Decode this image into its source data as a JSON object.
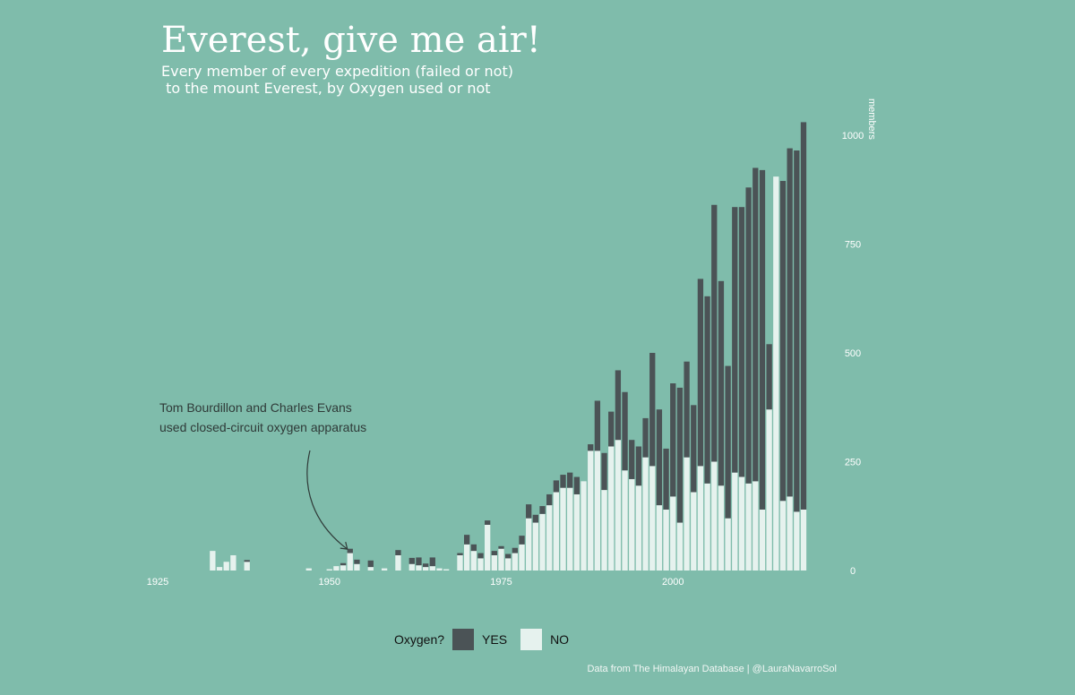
{
  "title": "Everest, give me air!",
  "subtitle": "Every member of every expedition (failed or not)\n to the mount Everest, by Oxygen used or not",
  "caption": "Data from The Himalayan Database | @LauraNavarroSol",
  "annotation": {
    "line1": "Tom Bourdillon and Charles Evans",
    "line2": "used closed-circuit oxygen apparatus"
  },
  "legend": {
    "title": "Oxygen?",
    "yes_label": "YES",
    "no_label": "NO"
  },
  "colors": {
    "background": "#7fbcab",
    "yes": "#4b5356",
    "no": "#e6f2ee",
    "text": "#ffffff"
  },
  "chart_data": {
    "type": "bar",
    "stacked": true,
    "ylabel": "members",
    "xlim": [
      1925,
      2019
    ],
    "ylim": [
      0,
      1050
    ],
    "x_ticks": [
      "1925",
      "1950",
      "1975",
      "2000"
    ],
    "y_ticks": [
      "0",
      "250",
      "500",
      "750",
      "1000"
    ],
    "y_axis_position": "right",
    "grid": false,
    "legend_position": "bottom",
    "annotation_year": 1953,
    "years": [
      1933,
      1934,
      1935,
      1936,
      1938,
      1947,
      1950,
      1951,
      1952,
      1953,
      1954,
      1956,
      1958,
      1960,
      1962,
      1963,
      1964,
      1965,
      1966,
      1967,
      1969,
      1970,
      1971,
      1972,
      1973,
      1974,
      1975,
      1976,
      1977,
      1978,
      1979,
      1980,
      1981,
      1982,
      1983,
      1984,
      1985,
      1986,
      1987,
      1988,
      1989,
      1990,
      1991,
      1992,
      1993,
      1994,
      1995,
      1996,
      1997,
      1998,
      1999,
      2000,
      2001,
      2002,
      2003,
      2004,
      2005,
      2006,
      2007,
      2008,
      2009,
      2010,
      2011,
      2012,
      2013,
      2014,
      2015,
      2016,
      2017,
      2018,
      2019
    ],
    "series": [
      {
        "name": "YES",
        "values": [
          0,
          0,
          0,
          0,
          4,
          0,
          0,
          0,
          5,
          10,
          10,
          15,
          0,
          12,
          14,
          18,
          8,
          20,
          0,
          0,
          5,
          22,
          15,
          12,
          10,
          10,
          6,
          10,
          12,
          20,
          32,
          18,
          18,
          25,
          27,
          30,
          35,
          40,
          0,
          15,
          115,
          85,
          80,
          160,
          180,
          90,
          90,
          90,
          260,
          220,
          140,
          260,
          310,
          220,
          200,
          430,
          430,
          590,
          470,
          350,
          610,
          620,
          680,
          720,
          780,
          150,
          0,
          735,
          800,
          830,
          890
        ]
      },
      {
        "name": "NO",
        "values": [
          45,
          8,
          20,
          35,
          20,
          5,
          3,
          10,
          12,
          40,
          15,
          8,
          5,
          35,
          15,
          12,
          8,
          10,
          5,
          3,
          35,
          60,
          45,
          28,
          105,
          35,
          50,
          28,
          40,
          60,
          120,
          110,
          130,
          150,
          180,
          190,
          190,
          175,
          205,
          275,
          275,
          185,
          285,
          300,
          230,
          210,
          195,
          260,
          240,
          150,
          140,
          170,
          110,
          260,
          180,
          240,
          200,
          250,
          195,
          120,
          225,
          215,
          200,
          205,
          140,
          370,
          905,
          160,
          170,
          135,
          140
        ]
      }
    ]
  }
}
